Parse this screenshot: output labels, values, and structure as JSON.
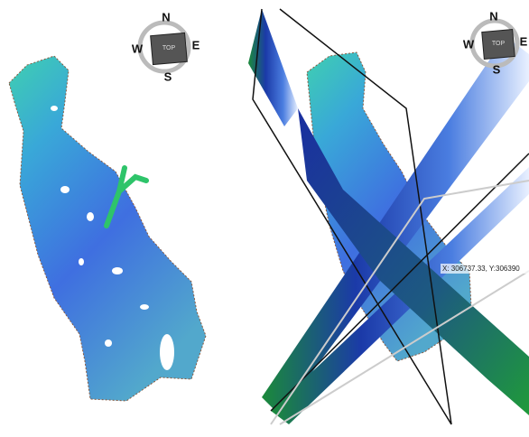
{
  "views": [
    {
      "compass": {
        "north": "N",
        "west": "W",
        "east": "E",
        "south": "S",
        "top": "TOP"
      }
    },
    {
      "compass": {
        "north": "N",
        "west": "W",
        "east": "E",
        "south": "S",
        "top": "TOP"
      },
      "coordinate_label": "X: 306737.33, Y:306390"
    }
  ]
}
